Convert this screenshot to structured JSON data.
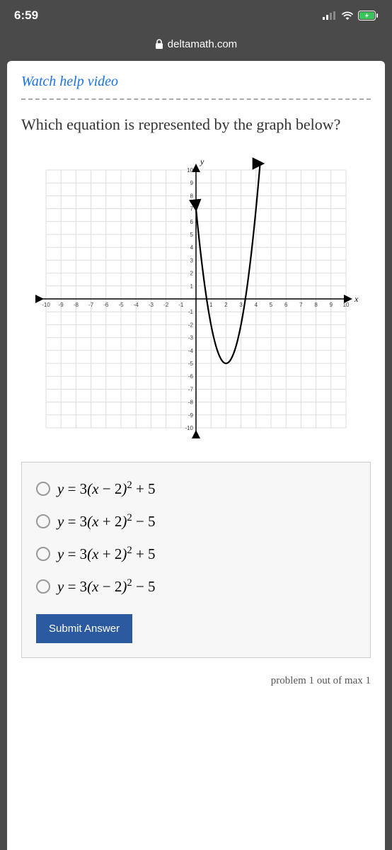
{
  "status": {
    "time": "6:59"
  },
  "browser": {
    "url": "deltamath.com"
  },
  "help_link": "Watch help video",
  "question": "Which equation is represented by the graph below?",
  "chart": {
    "type": "line",
    "xlim": [
      -10,
      10
    ],
    "ylim": [
      -10,
      10
    ],
    "xtick_step": 1,
    "ytick_step": 1,
    "xlabel": "x",
    "ylabel": "y",
    "background_color": "#ffffff",
    "grid_color": "#dcdcdc",
    "axis_color": "#000000",
    "tick_fontsize": 8,
    "tick_color": "#444444",
    "label_fontsize": 12,
    "curve": {
      "a": 3,
      "h": 2,
      "k": -5,
      "color": "#000000",
      "line_width": 2.2,
      "draw_xmin": 0.0,
      "draw_xmax": 4.4
    },
    "arrowheads": true
  },
  "options": [
    {
      "a": "3",
      "hsign": "−",
      "h": "2",
      "ksign": "+",
      "k": "5"
    },
    {
      "a": "3",
      "hsign": "+",
      "h": "2",
      "ksign": "−",
      "k": "5"
    },
    {
      "a": "3",
      "hsign": "+",
      "h": "2",
      "ksign": "+",
      "k": "5"
    },
    {
      "a": "3",
      "hsign": "−",
      "h": "2",
      "ksign": "−",
      "k": "5"
    }
  ],
  "submit_label": "Submit Answer",
  "footer": "problem 1 out of max 1"
}
